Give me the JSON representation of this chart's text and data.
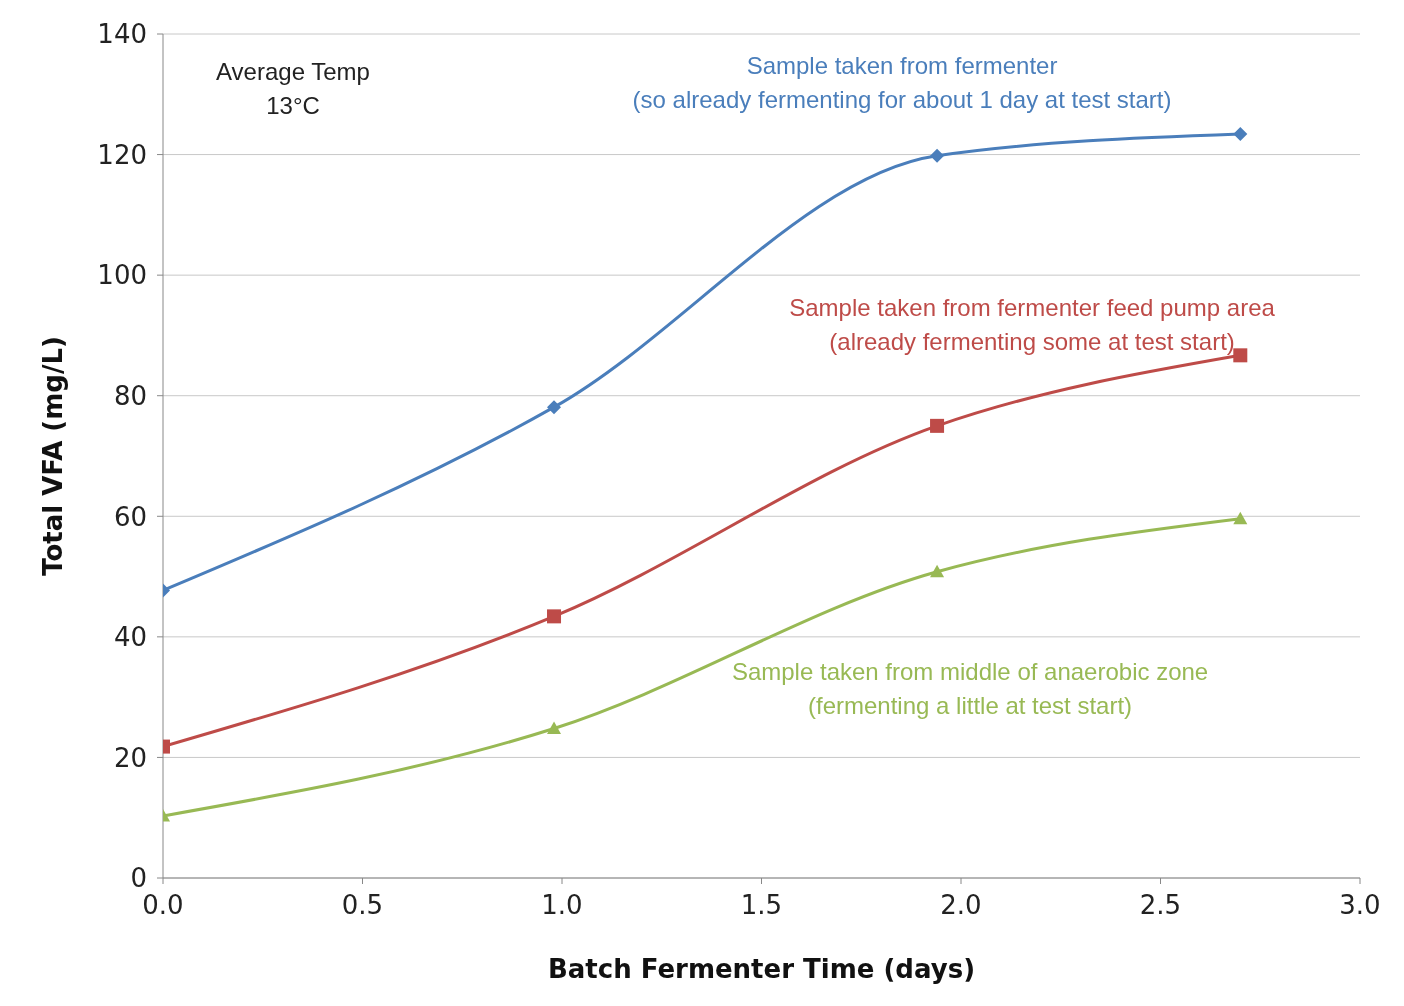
{
  "chart_data": {
    "type": "line",
    "xlabel": "Batch Fermenter Time (days)",
    "ylabel": "Total VFA (mg/L)",
    "x": [
      0,
      0.98,
      1.94,
      2.7
    ],
    "series": [
      {
        "name": "Sample taken from fermenter\n(so already fermenting for about 1 day at test start)",
        "color": "#4a7ebb",
        "marker": "diamond",
        "values": [
          47.7,
          78.1,
          119.8,
          123.4
        ]
      },
      {
        "name": "Sample taken from fermenter feed pump area\n(already fermenting some at test start)",
        "color": "#be4b48",
        "marker": "square",
        "values": [
          21.8,
          43.4,
          75.0,
          86.7
        ]
      },
      {
        "name": "Sample taken from middle of anaerobic zone\n(fermenting a little at test start)",
        "color": "#98b954",
        "marker": "triangle",
        "values": [
          10.3,
          24.8,
          50.8,
          59.6
        ]
      }
    ],
    "xlim": [
      0,
      3
    ],
    "xticks": [
      {
        "value": 0,
        "label": "0.0"
      },
      0.5,
      {
        "value": 1,
        "label": "1.0"
      },
      1.5,
      {
        "value": 2,
        "label": "2.0"
      },
      2.5,
      {
        "value": 3,
        "label": "3.0"
      }
    ],
    "ylim": [
      0,
      140
    ],
    "yticks": [
      0,
      20,
      40,
      60,
      80,
      100,
      120,
      140
    ],
    "grid": "y",
    "line_style": "solid",
    "annotations": [
      "Average Temp\n13°C"
    ]
  }
}
